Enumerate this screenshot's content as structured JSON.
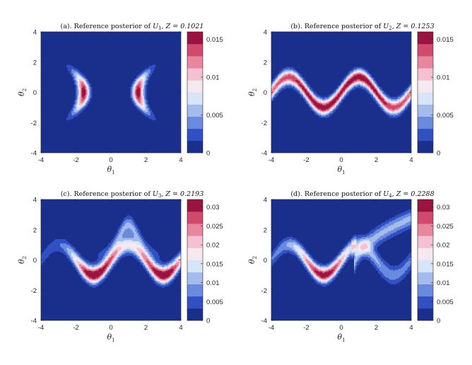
{
  "chart_data": [
    {
      "type": "heatmap",
      "panel": "a",
      "title": "(a). Reference posterior of U1, Z = 0.1021",
      "xlabel": "θ1",
      "ylabel": "θ2",
      "xlim": [
        -4,
        4
      ],
      "ylim": [
        -4,
        4
      ],
      "xticks": [
        "-4",
        "-2",
        "0",
        "2",
        "4"
      ],
      "yticks": [
        "-4",
        "-2",
        "0",
        "2",
        "4"
      ],
      "colorbar": {
        "range": [
          0,
          0.016
        ],
        "ticks": [
          0,
          0.005,
          0.01,
          0.015
        ],
        "labels": [
          "0",
          "0.005",
          "0.01",
          "0.015"
        ],
        "levels": 10
      },
      "peak": 0.016,
      "shape": "two crescent modes centered near θ1 = -1.7 and θ1 = 1.7, spanning θ2 from -1.5 to 1.5"
    },
    {
      "type": "heatmap",
      "panel": "b",
      "title": "(b). Reference posterior of U2, Z = 0.1253",
      "xlabel": "θ1",
      "ylabel": "θ2",
      "xlim": [
        -4,
        4
      ],
      "ylim": [
        -4,
        4
      ],
      "xticks": [
        "-4",
        "-2",
        "0",
        "2",
        "4"
      ],
      "yticks": [
        "-4",
        "-2",
        "0",
        "2",
        "4"
      ],
      "colorbar": {
        "range": [
          0,
          0.016
        ],
        "ticks": [
          0,
          0.005,
          0.01,
          0.015
        ],
        "labels": [
          "0",
          "0.005",
          "0.01",
          "0.015"
        ],
        "levels": 10
      },
      "peak": 0.016,
      "shape": "sinusoidal ridge θ2 = sin(πθ1/2)"
    },
    {
      "type": "heatmap",
      "panel": "c",
      "title": "(c). Reference posterior of U3, Z = 0.2193",
      "xlabel": "θ1",
      "ylabel": "θ2",
      "xlim": [
        -4,
        4
      ],
      "ylim": [
        -4,
        4
      ],
      "xticks": [
        "-4",
        "-2",
        "0",
        "2",
        "4"
      ],
      "yticks": [
        "-4",
        "-2",
        "0",
        "2",
        "4"
      ],
      "colorbar": {
        "range": [
          0,
          0.032
        ],
        "ticks": [
          0,
          0.005,
          0.01,
          0.015,
          0.02,
          0.025,
          0.03
        ],
        "labels": [
          "0",
          "0.005",
          "0.01",
          "0.015",
          "0.02",
          "0.025",
          "0.03"
        ],
        "levels": 10
      },
      "peak": 0.032,
      "shape": "sinusoidal ridge with a secondary bulge between θ1 = 0 and θ1 = 2 rising to θ2 ≈ 2.3"
    },
    {
      "type": "heatmap",
      "panel": "d",
      "title": "(d). Reference posterior of U4, Z = 0.2288",
      "xlabel": "θ1",
      "ylabel": "θ2",
      "xlim": [
        -4,
        4
      ],
      "ylim": [
        -4,
        4
      ],
      "xticks": [
        "-4",
        "-2",
        "0",
        "2",
        "4"
      ],
      "yticks": [
        "-4",
        "-2",
        "0",
        "2",
        "4"
      ],
      "colorbar": {
        "range": [
          0,
          0.032
        ],
        "ticks": [
          0,
          0.005,
          0.01,
          0.015,
          0.02,
          0.025,
          0.03
        ],
        "labels": [
          "0",
          "0.005",
          "0.01",
          "0.015",
          "0.02",
          "0.025",
          "0.03"
        ],
        "levels": 10
      },
      "peak": 0.032,
      "shape": "sinusoidal ridge for θ1 < 1 plus a wide arc branching upward from θ1 ≈ 1 to θ2 ≈ 4"
    }
  ],
  "colormap": [
    "#1a2f8c",
    "#3150c4",
    "#6a8ade",
    "#a4bcec",
    "#d8e4f7",
    "#f6e8ef",
    "#f4c0d2",
    "#e8869f",
    "#d2496d",
    "#9a1441"
  ],
  "titles": [
    {
      "prefix": "(a). Reference posterior of ",
      "U": "U",
      "sub": "1",
      "z": "Z = 0.1021"
    },
    {
      "prefix": "(b). Reference posterior of ",
      "U": "U",
      "sub": "2",
      "z": "Z = 0.1253"
    },
    {
      "prefix": "(c). Reference posterior of ",
      "U": "U",
      "sub": "3",
      "z": "Z = 0.2193"
    },
    {
      "prefix": "(d). Reference posterior of ",
      "U": "U",
      "sub": "4",
      "z": "Z = 0.2288"
    }
  ],
  "axis_symbol": "θ",
  "xsub": "1",
  "ysub": "2"
}
